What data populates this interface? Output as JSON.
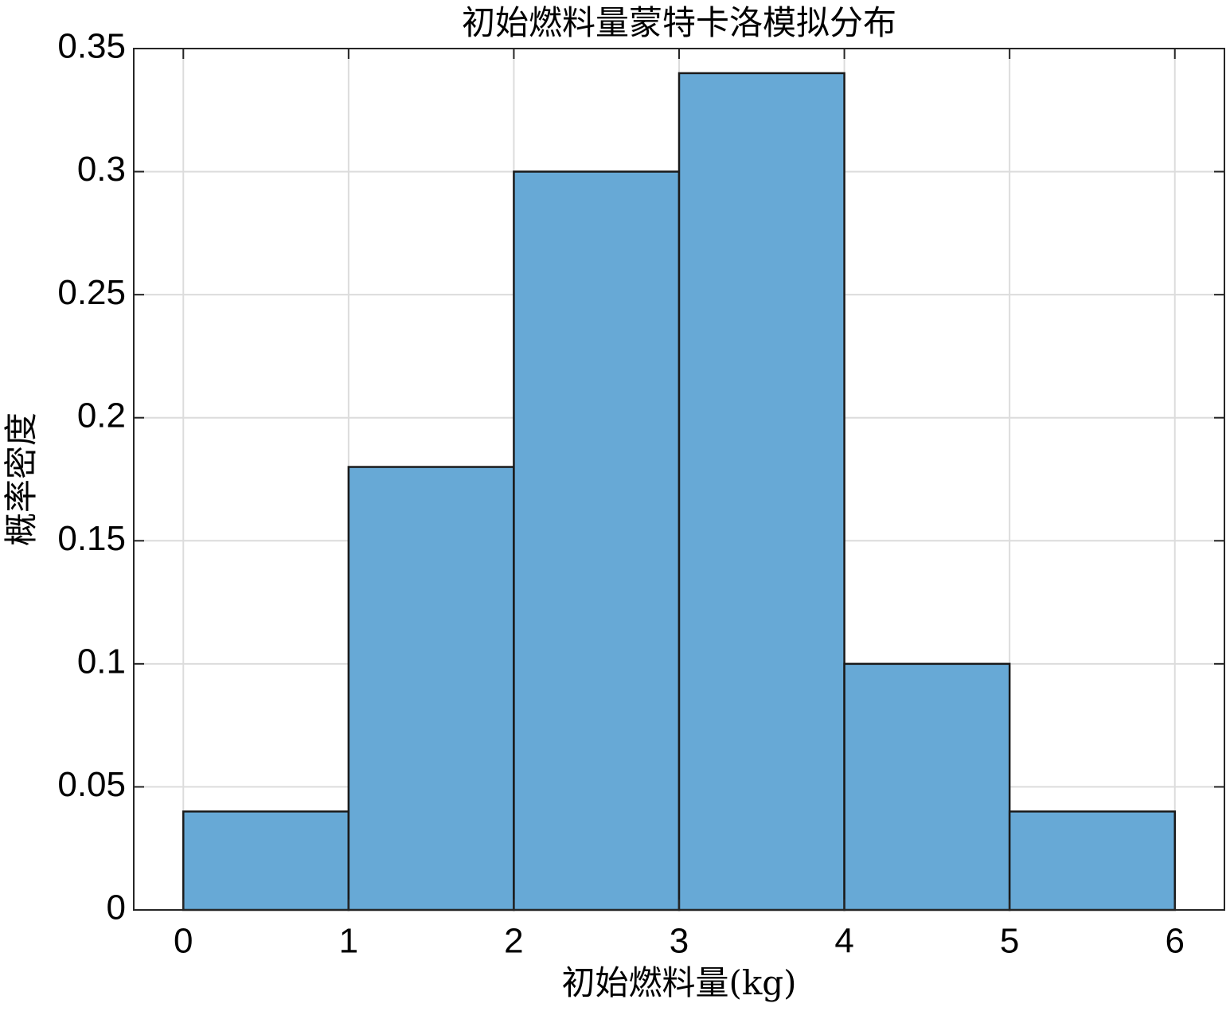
{
  "chart_data": {
    "type": "histogram",
    "title": "初始燃料量蒙特卡洛模拟分布",
    "x_label": "初始燃料量(kg)",
    "y_label": "概率密度",
    "bins": [
      0,
      1,
      2,
      3,
      4,
      5,
      6
    ],
    "values": [
      0.04,
      0.18,
      0.3,
      0.34,
      0.1,
      0.04
    ],
    "color": "#67a9d6",
    "edge_color": "#1a1a1a",
    "xlim": [
      -0.3,
      6.3
    ],
    "xticks": [
      0,
      1,
      2,
      3,
      4,
      5,
      6
    ],
    "ylim": [
      0,
      0.35
    ],
    "yticks": [
      0,
      0.05,
      0.1,
      0.15,
      0.2,
      0.25,
      0.3,
      0.35
    ],
    "grid": true
  }
}
